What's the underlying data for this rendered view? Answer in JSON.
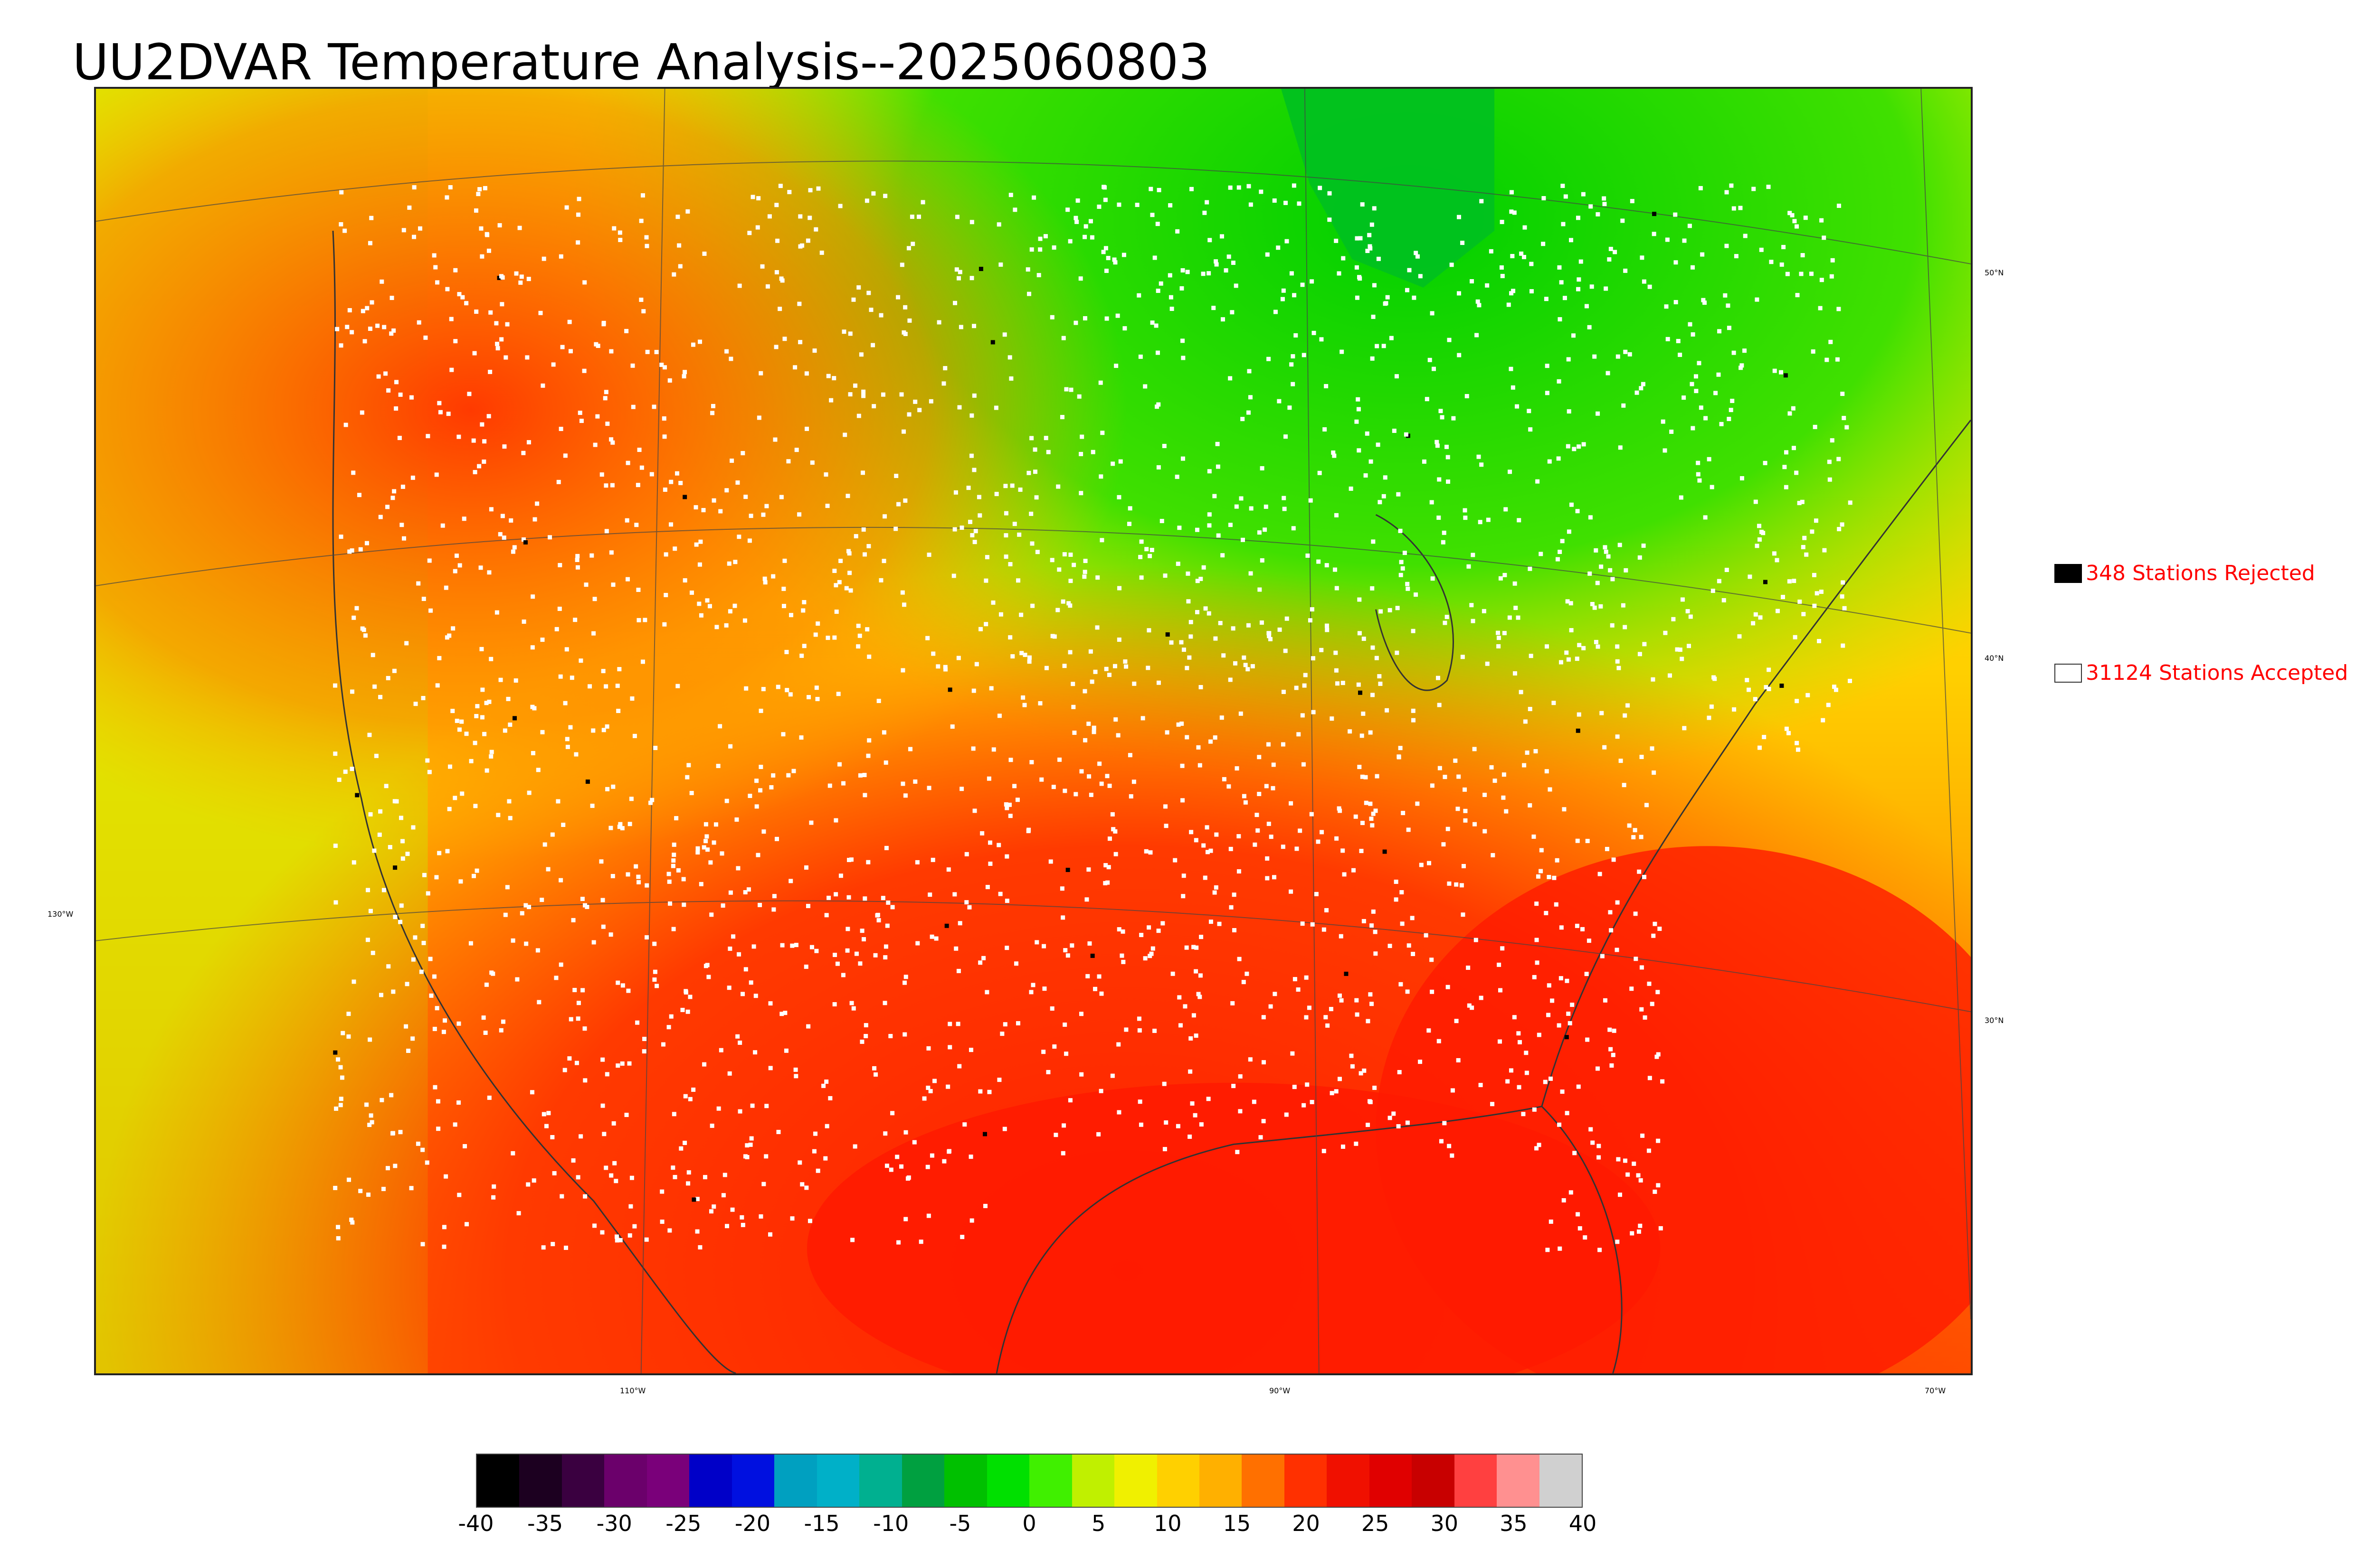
{
  "title": "UU2DVAR Temperature Analysis--2025060803",
  "map": {
    "longitude_labels": [
      "110°W",
      "90°W",
      "70°W"
    ],
    "latitude_labels": [
      "50°N",
      "40°N",
      "30°N"
    ],
    "left_meridian_label": "130°W"
  },
  "legend": {
    "rejected": {
      "label": "348 Stations Rejected",
      "color": "#000000"
    },
    "accepted": {
      "label": "31124 Stations Accepted",
      "color": "#ffffff"
    }
  },
  "colorbar": {
    "ticks": [
      "-40",
      "-35",
      "-30",
      "-25",
      "-20",
      "-15",
      "-10",
      "-5",
      "0",
      "5",
      "10",
      "15",
      "20",
      "25",
      "30",
      "35",
      "40"
    ],
    "colors": [
      "#000000",
      "#1c0020",
      "#3a0040",
      "#6b006b",
      "#7a007a",
      "#0000c8",
      "#0010e0",
      "#00a0c0",
      "#00b0c8",
      "#00b090",
      "#00a040",
      "#00c000",
      "#00e000",
      "#40f000",
      "#c0f000",
      "#f0f000",
      "#ffd000",
      "#ffb000",
      "#ff7000",
      "#ff3000",
      "#f01000",
      "#e00000",
      "#c80000",
      "#ff4040",
      "#ff9090",
      "#d0d0d0"
    ]
  }
}
